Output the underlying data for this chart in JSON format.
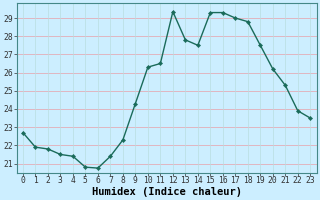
{
  "x": [
    0,
    1,
    2,
    3,
    4,
    5,
    6,
    7,
    8,
    9,
    10,
    11,
    12,
    13,
    14,
    15,
    16,
    17,
    18,
    19,
    20,
    21,
    22,
    23
  ],
  "y": [
    22.7,
    21.9,
    21.8,
    21.5,
    21.4,
    20.8,
    20.75,
    21.4,
    22.3,
    24.3,
    26.3,
    26.5,
    29.35,
    27.8,
    27.5,
    29.3,
    29.3,
    29.0,
    28.8,
    27.5,
    26.2,
    25.3,
    23.9,
    23.5
  ],
  "line_color": "#1a6b5a",
  "marker": "D",
  "markersize": 2.2,
  "linewidth": 1.0,
  "bg_color": "#cceeff",
  "grid_color_h": "#e8a0a8",
  "grid_color_v": "#b8dde0",
  "xlabel": "Humidex (Indice chaleur)",
  "xlabel_fontsize": 7.5,
  "ylim": [
    20.5,
    29.8
  ],
  "yticks": [
    21,
    22,
    23,
    24,
    25,
    26,
    27,
    28,
    29
  ],
  "xticks": [
    0,
    1,
    2,
    3,
    4,
    5,
    6,
    7,
    8,
    9,
    10,
    11,
    12,
    13,
    14,
    15,
    16,
    17,
    18,
    19,
    20,
    21,
    22,
    23
  ],
  "tick_fontsize": 5.8,
  "spine_color": "#448888"
}
